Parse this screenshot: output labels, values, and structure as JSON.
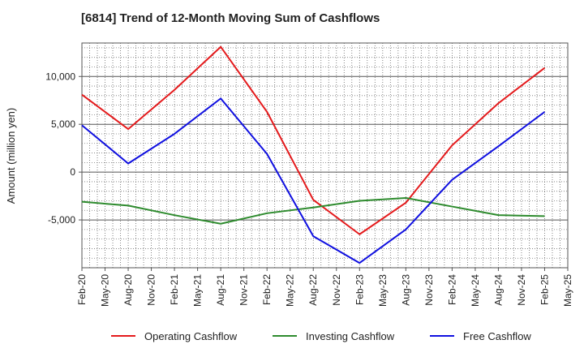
{
  "chart_data": {
    "type": "line",
    "title": "[6814]  Trend of 12-Month Moving Sum of Cashflows",
    "xlabel": "",
    "ylabel": "Amount (million yen)",
    "x_ticks": [
      "Feb-20",
      "May-20",
      "Aug-20",
      "Nov-20",
      "Feb-21",
      "May-21",
      "Aug-21",
      "Nov-21",
      "Feb-22",
      "May-22",
      "Aug-22",
      "Nov-22",
      "Feb-23",
      "May-23",
      "Aug-23",
      "Nov-23",
      "Feb-24",
      "May-24",
      "Aug-24",
      "Nov-24",
      "Feb-25",
      "May-25"
    ],
    "x": [
      "Feb-20",
      "Aug-20",
      "Feb-21",
      "Aug-21",
      "Feb-22",
      "Aug-22",
      "Feb-23",
      "Aug-23",
      "Feb-24",
      "Aug-24",
      "Feb-25"
    ],
    "y_ticks": [
      10000,
      5000,
      0,
      -5000
    ],
    "y_tick_labels": [
      "10,000",
      "5,000",
      "0",
      "-5,000"
    ],
    "ylim": [
      -10000,
      13500
    ],
    "grid": true,
    "legend_position": "bottom",
    "series": [
      {
        "name": "Operating Cashflow",
        "color": "#e41a1c",
        "values": [
          8100,
          4500,
          8600,
          13100,
          6300,
          -2900,
          -6500,
          -3200,
          2800,
          7200,
          10900
        ]
      },
      {
        "name": "Investing Cashflow",
        "color": "#2e8b2e",
        "values": [
          -3100,
          -3500,
          -4500,
          -5400,
          -4300,
          -3700,
          -3000,
          -2700,
          -3600,
          -4500,
          -4600
        ]
      },
      {
        "name": "Free Cashflow",
        "color": "#1010e0",
        "values": [
          4900,
          900,
          4000,
          7700,
          1900,
          -6700,
          -9500,
          -6000,
          -800,
          2700,
          6300
        ]
      }
    ]
  }
}
